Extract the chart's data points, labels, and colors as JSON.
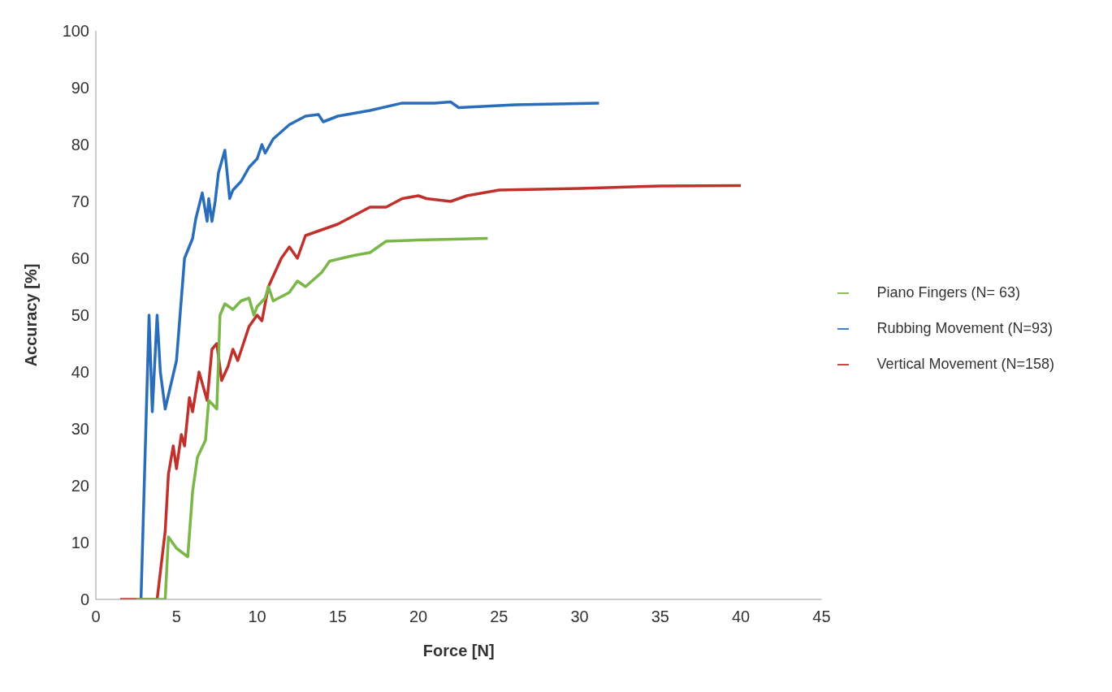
{
  "chart_data": {
    "type": "line",
    "xlabel": "Force [N]",
    "ylabel": "Accuracy [%]",
    "xlim": [
      0,
      45
    ],
    "xticks": [
      0,
      5,
      10,
      15,
      20,
      25,
      30,
      35,
      40,
      45
    ],
    "ylim": [
      0,
      100
    ],
    "yticks": [
      0,
      10,
      20,
      30,
      40,
      50,
      60,
      70,
      80,
      90,
      100
    ],
    "grid": false,
    "legend": "right",
    "marker": "none",
    "line_style": "solid",
    "series": [
      {
        "name": "Rubbing Movement (N=93)",
        "color": "#2a6ebb",
        "x": [
          2.8,
          3.3,
          3.5,
          3.8,
          4.0,
          4.3,
          5.0,
          5.5,
          6.0,
          6.2,
          6.6,
          6.9,
          7.0,
          7.2,
          7.4,
          7.6,
          8.0,
          8.3,
          8.5,
          9.0,
          9.5,
          10.0,
          10.3,
          10.5,
          11,
          12,
          13,
          13.8,
          14.1,
          15,
          17,
          19,
          21,
          22,
          22.5,
          26,
          31.2
        ],
        "values": [
          0,
          50,
          33,
          50,
          40,
          33.5,
          42,
          60,
          63.5,
          67,
          71.5,
          66.5,
          70.5,
          66.5,
          70,
          75,
          79,
          70.5,
          72,
          73.5,
          76,
          77.5,
          80,
          78.5,
          81,
          83.5,
          85,
          85.3,
          84,
          85,
          86,
          87.3,
          87.3,
          87.5,
          86.5,
          87,
          87.3
        ]
      },
      {
        "name": "Vertical Movement (N=158)",
        "color": "#c0312b",
        "x": [
          1.5,
          3.8,
          4.3,
          4.5,
          4.8,
          5.0,
          5.3,
          5.5,
          5.8,
          6.0,
          6.4,
          6.7,
          6.9,
          7.2,
          7.5,
          7.8,
          8.2,
          8.5,
          8.8,
          9.5,
          10,
          10.3,
          10.7,
          11.5,
          12,
          12.5,
          13,
          13.5,
          14,
          15,
          16,
          17,
          18,
          19,
          20,
          20.5,
          22,
          23,
          25,
          30,
          35,
          40
        ],
        "values": [
          0,
          0,
          12,
          22,
          27,
          23,
          29,
          27,
          35.5,
          33,
          40,
          37,
          35,
          44,
          45,
          38.5,
          41,
          44,
          42,
          48,
          50,
          49,
          55,
          60,
          62,
          60,
          64,
          64.5,
          65,
          66,
          67.5,
          69,
          69,
          70.5,
          71,
          70.5,
          70,
          71,
          72,
          72.3,
          72.7,
          72.8
        ]
      },
      {
        "name": "Piano Fingers (N= 63)",
        "color": "#7ab648",
        "x": [
          2.5,
          4.3,
          4.5,
          5.0,
          5.7,
          6.0,
          6.3,
          6.8,
          7.0,
          7.5,
          7.7,
          8.0,
          8.5,
          9.0,
          9.5,
          9.8,
          10,
          10.5,
          10.7,
          11,
          12,
          12.5,
          13,
          14,
          14.5,
          16,
          17,
          18,
          20,
          24.3
        ],
        "values": [
          0,
          0,
          11,
          9,
          7.5,
          19,
          25,
          28,
          35,
          33.5,
          50,
          52,
          51,
          52.5,
          53,
          50,
          51.5,
          53,
          55,
          52.5,
          54,
          56,
          55,
          57.5,
          59.5,
          60.5,
          61,
          63,
          63.2,
          63.5
        ]
      }
    ]
  }
}
